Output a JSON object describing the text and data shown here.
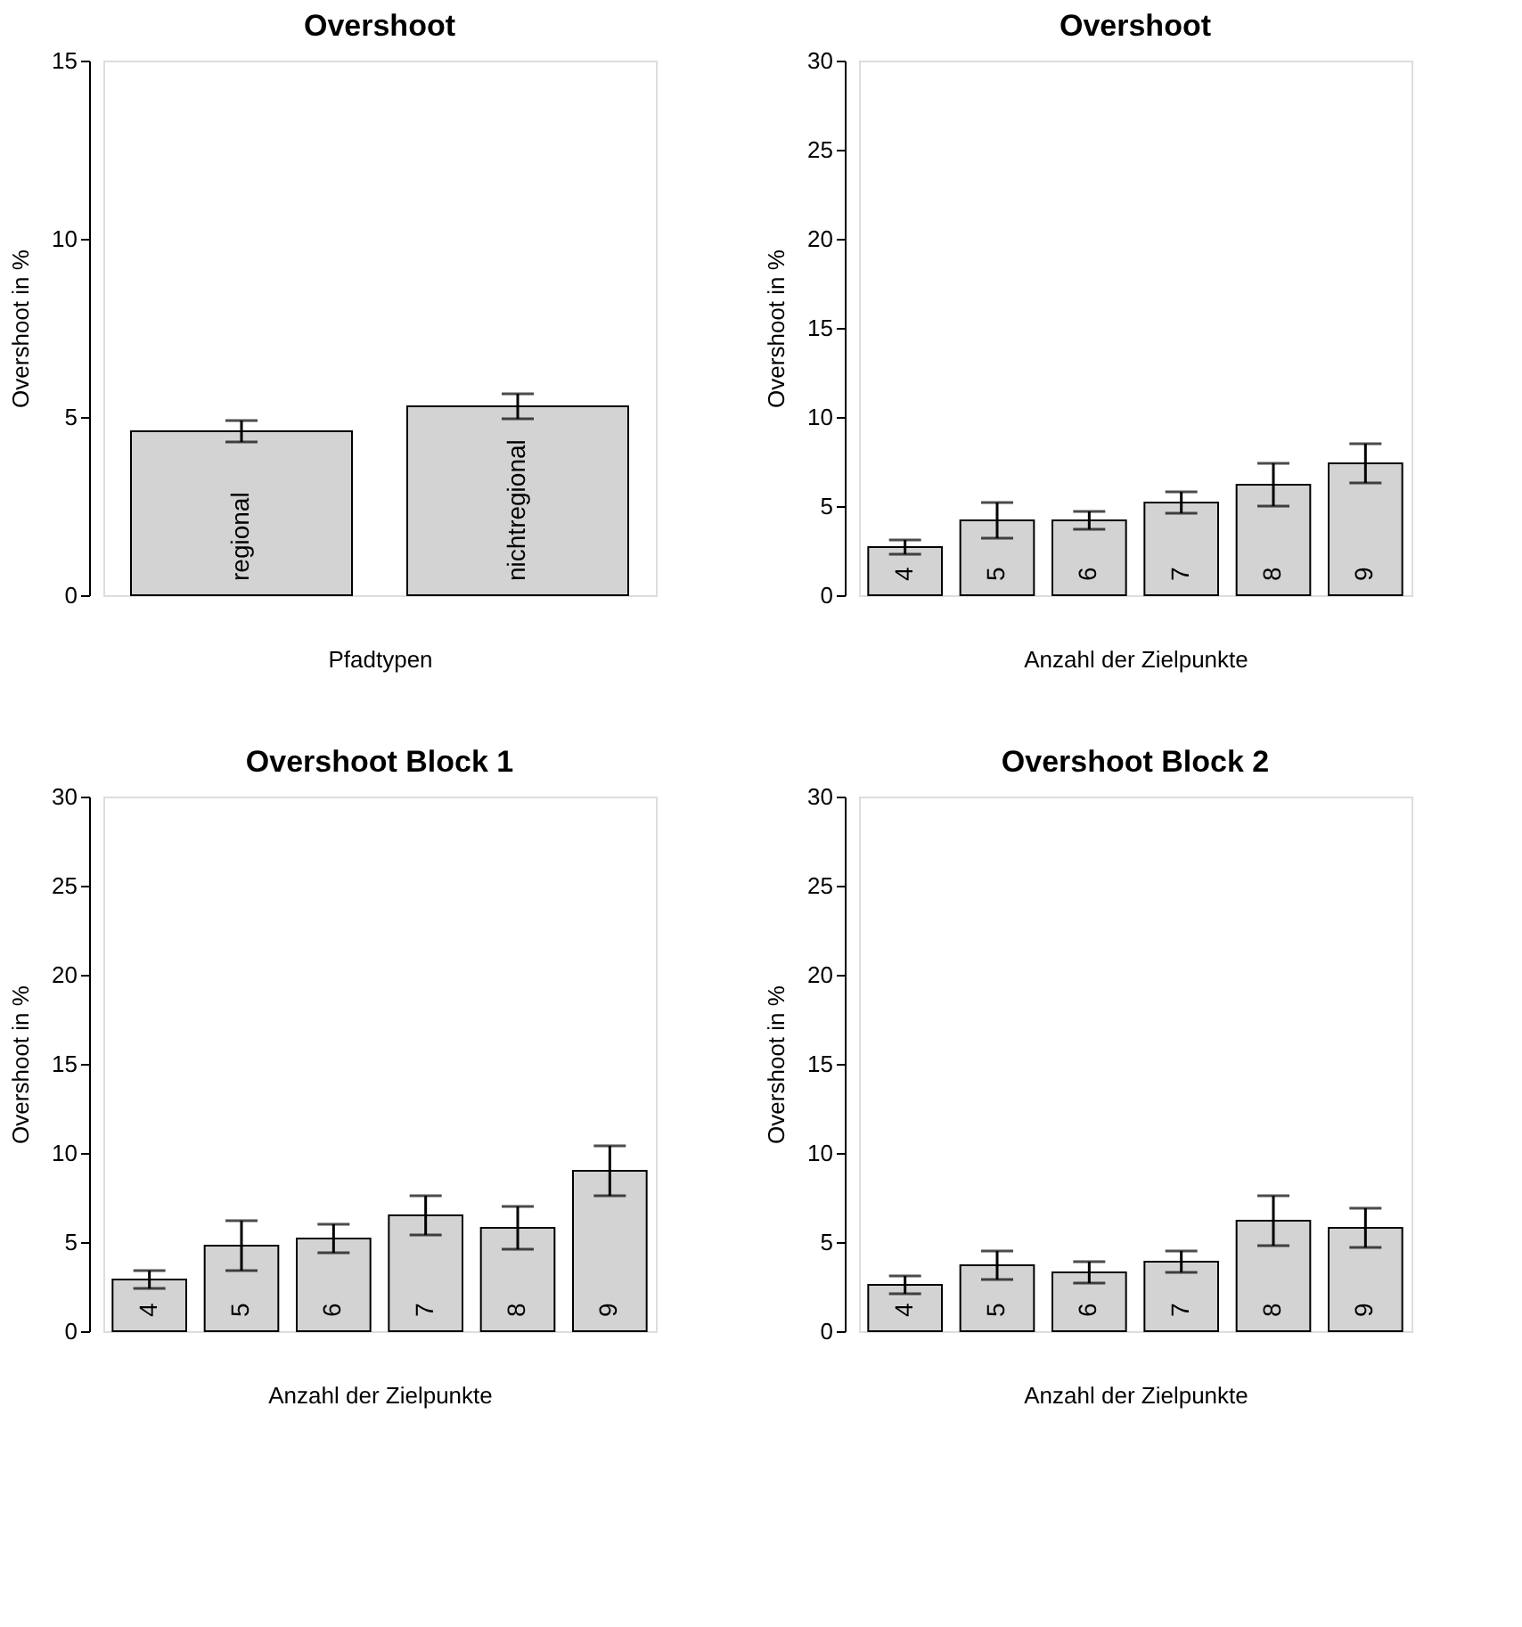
{
  "chart_data": [
    {
      "type": "bar",
      "title": "Overshoot",
      "xlabel": "Pfadtypen",
      "ylabel": "Overshoot in %",
      "categories": [
        "regional",
        "nichtregional"
      ],
      "values": [
        4.6,
        5.3
      ],
      "errors": [
        0.3,
        0.35
      ],
      "color": "#d3d3d3",
      "ylim": [
        0,
        15
      ],
      "yticks": [
        0,
        5,
        10,
        15
      ],
      "grid": false
    },
    {
      "type": "bar",
      "title": "Overshoot",
      "xlabel": "Anzahl der Zielpunkte",
      "ylabel": "Overshoot in %",
      "categories": [
        "4",
        "5",
        "6",
        "7",
        "8",
        "9"
      ],
      "values": [
        2.7,
        4.2,
        4.2,
        5.2,
        6.2,
        7.4
      ],
      "errors": [
        0.4,
        1.0,
        0.5,
        0.6,
        1.2,
        1.1
      ],
      "color": "#d3d3d3",
      "ylim": [
        0,
        30
      ],
      "yticks": [
        0,
        5,
        10,
        15,
        20,
        25,
        30
      ],
      "grid": false
    },
    {
      "type": "bar",
      "title": "Overshoot Block 1",
      "xlabel": "Anzahl der Zielpunkte",
      "ylabel": "Overshoot in %",
      "categories": [
        "4",
        "5",
        "6",
        "7",
        "8",
        "9"
      ],
      "values": [
        2.9,
        4.8,
        5.2,
        6.5,
        5.8,
        9.0
      ],
      "errors": [
        0.5,
        1.4,
        0.8,
        1.1,
        1.2,
        1.4
      ],
      "color": "#d3d3d3",
      "ylim": [
        0,
        30
      ],
      "yticks": [
        0,
        5,
        10,
        15,
        20,
        25,
        30
      ],
      "grid": false
    },
    {
      "type": "bar",
      "title": "Overshoot Block 2",
      "xlabel": "Anzahl der Zielpunkte",
      "ylabel": "Overshoot in %",
      "categories": [
        "4",
        "5",
        "6",
        "7",
        "8",
        "9"
      ],
      "values": [
        2.6,
        3.7,
        3.3,
        3.9,
        6.2,
        5.8
      ],
      "errors": [
        0.5,
        0.8,
        0.6,
        0.6,
        1.4,
        1.1
      ],
      "color": "#d3d3d3",
      "ylim": [
        0,
        30
      ],
      "yticks": [
        0,
        5,
        10,
        15,
        20,
        25,
        30
      ],
      "grid": false
    }
  ]
}
